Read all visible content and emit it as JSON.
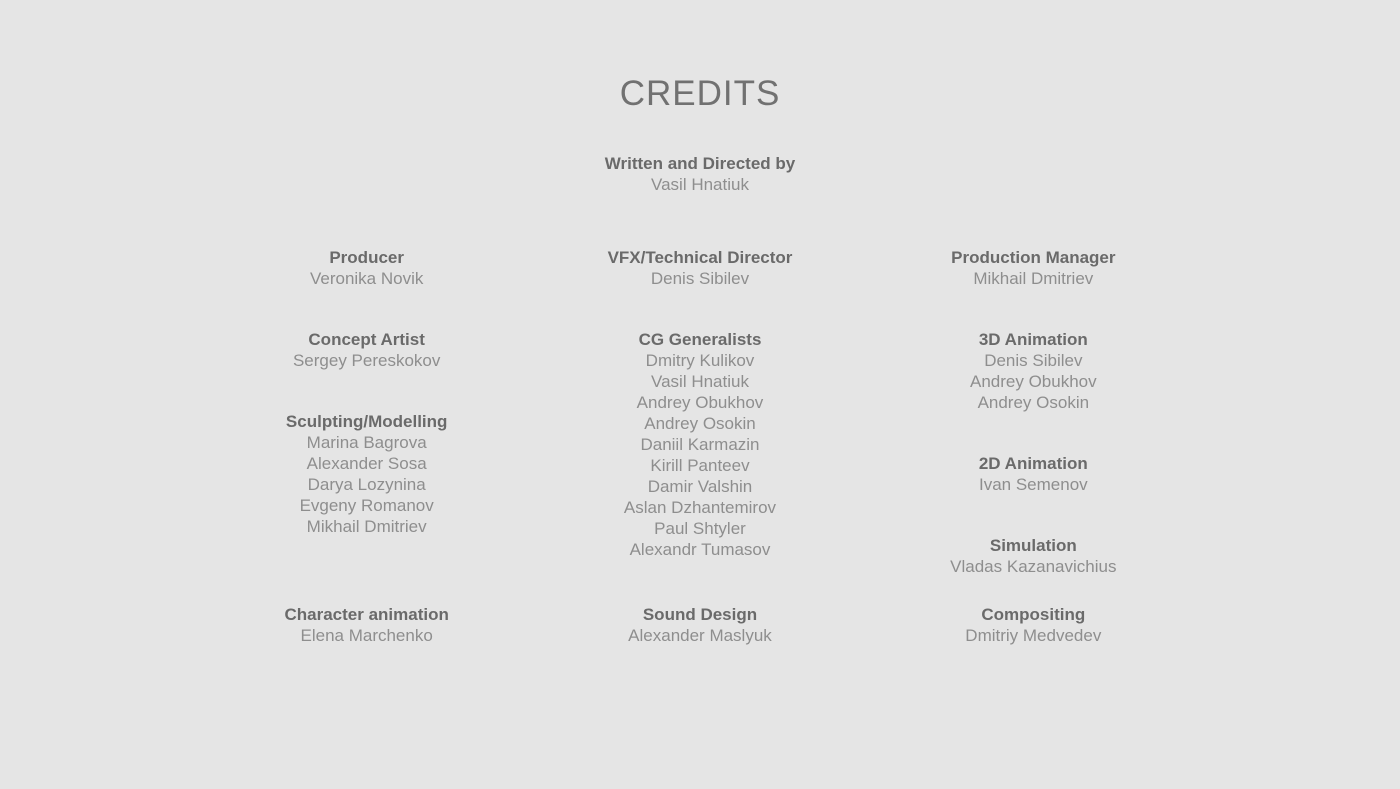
{
  "page": {
    "title": "CREDITS"
  },
  "colors": {
    "background": "#e5e5e5",
    "title_text": "#717171",
    "role_text": "#6a6a6a",
    "name_text": "#8e8e8e"
  },
  "lead_section": {
    "role": "Written and Directed by",
    "names": [
      "Vasil Hnatiuk"
    ]
  },
  "columns": [
    {
      "id": "left",
      "sections": [
        {
          "role": "Producer",
          "names": [
            "Veronika Novik"
          ]
        },
        {
          "role": "Concept Artist",
          "names": [
            "Sergey Pereskokov"
          ]
        },
        {
          "role": "Sculpting/Modelling",
          "names": [
            "Marina Bagrova",
            "Alexander Sosa",
            "Darya Lozynina",
            "Evgeny Romanov",
            "Mikhail Dmitriev"
          ]
        },
        {
          "role": "Character animation",
          "names": [
            "Elena Marchenko"
          ]
        }
      ]
    },
    {
      "id": "center",
      "sections": [
        {
          "role": "VFX/Technical Director",
          "names": [
            "Denis Sibilev"
          ]
        },
        {
          "role": "CG Generalists",
          "names": [
            "Dmitry Kulikov",
            "Vasil Hnatiuk",
            "Andrey Obukhov",
            "Andrey Osokin",
            "Daniil Karmazin",
            "Kirill Panteev",
            "Damir Valshin",
            "Aslan Dzhantemirov",
            "Paul Shtyler",
            "Alexandr Tumasov"
          ]
        },
        {
          "role": "Sound Design",
          "names": [
            "Alexander Maslyuk"
          ]
        }
      ]
    },
    {
      "id": "right",
      "sections": [
        {
          "role": "Production Manager",
          "names": [
            "Mikhail Dmitriev"
          ]
        },
        {
          "role": "3D Animation",
          "names": [
            "Denis Sibilev",
            "Andrey Obukhov",
            "Andrey Osokin"
          ]
        },
        {
          "role": "2D Animation",
          "names": [
            "Ivan Semenov"
          ]
        },
        {
          "role": "Simulation",
          "names": [
            "Vladas Kazanavichius"
          ]
        },
        {
          "role": "Compositing",
          "names": [
            "Dmitriy Medvedev"
          ]
        }
      ]
    }
  ]
}
